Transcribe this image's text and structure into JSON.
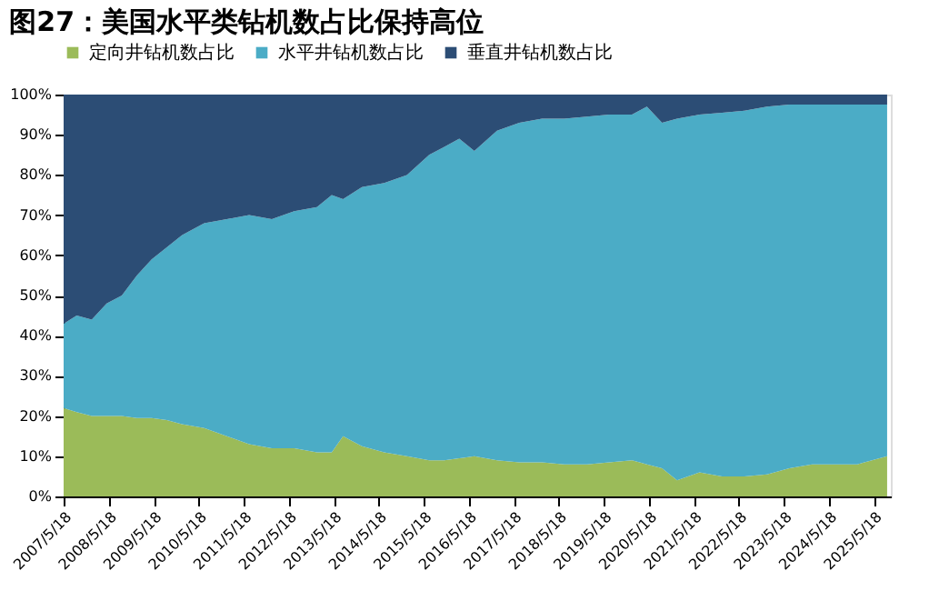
{
  "chart_data": {
    "type": "area",
    "title": "图27：美国水平类钻机数占比保持高位",
    "stacked": true,
    "legend": "top",
    "grid": false,
    "x": [
      "2007-05-18",
      "2007-09-01",
      "2008-01-01",
      "2008-05-01",
      "2008-09-01",
      "2009-01-01",
      "2009-05-01",
      "2009-09-01",
      "2010-01-01",
      "2010-07-01",
      "2011-01-01",
      "2011-07-01",
      "2012-01-01",
      "2012-07-01",
      "2013-01-01",
      "2013-05-01",
      "2013-08-01",
      "2014-01-01",
      "2014-07-01",
      "2015-01-01",
      "2015-07-01",
      "2015-11-01",
      "2016-03-01",
      "2016-07-01",
      "2017-01-01",
      "2017-07-01",
      "2018-01-01",
      "2018-07-01",
      "2019-01-01",
      "2019-07-01",
      "2020-01-01",
      "2020-05-01",
      "2020-09-01",
      "2021-01-01",
      "2021-07-01",
      "2022-01-01",
      "2022-07-01",
      "2023-01-01",
      "2023-07-01",
      "2024-01-01",
      "2024-07-01",
      "2025-01-01",
      "2025-09-01"
    ],
    "series": [
      {
        "name": "定向井钻机数占比",
        "color": "#9bbb59",
        "values": [
          22,
          21,
          20,
          20,
          20,
          19.5,
          19.5,
          19,
          18,
          17,
          15,
          13,
          12,
          12,
          11,
          11,
          15,
          12.5,
          11,
          10,
          9,
          9,
          9.5,
          10,
          9,
          8.5,
          8.5,
          8,
          8,
          8.5,
          9,
          8,
          7,
          4,
          6,
          5,
          5,
          5.5,
          7,
          8,
          8,
          8,
          10
        ]
      },
      {
        "name": "水平井钻机数占比",
        "color": "#4bacc6",
        "values": [
          21,
          24,
          24,
          28,
          30,
          35.5,
          39.5,
          43,
          47,
          51,
          54,
          57,
          57,
          59,
          61,
          64,
          59,
          64.5,
          67,
          70,
          76,
          78,
          79.5,
          76,
          82,
          84.5,
          85.5,
          86,
          86.5,
          86.5,
          86,
          89,
          86,
          90,
          89,
          90.5,
          91,
          91.5,
          90.5,
          89.5,
          89.5,
          89.5,
          87.5
        ]
      },
      {
        "name": "垂直井钻机数占比",
        "color": "#2c4d75",
        "values": [
          57,
          55,
          56,
          52,
          50,
          45,
          41,
          38,
          35,
          32,
          31,
          30,
          31,
          29,
          28,
          25,
          26,
          23,
          22,
          20,
          15,
          13,
          11,
          14,
          9,
          7,
          6,
          6,
          5.5,
          5,
          5,
          3,
          7,
          6,
          5,
          4.5,
          4,
          3,
          2.5,
          2.5,
          2.5,
          2.5,
          2.5
        ]
      }
    ],
    "xlim": [
      "2007-05-18",
      "2025-10-01"
    ],
    "xticks": [
      {
        "value": "2007-05-18",
        "label": "2007/5/18"
      },
      {
        "value": "2008-05-18",
        "label": "2008/5/18"
      },
      {
        "value": "2009-05-18",
        "label": "2009/5/18"
      },
      {
        "value": "2010-05-18",
        "label": "2010/5/18"
      },
      {
        "value": "2011-05-18",
        "label": "2011/5/18"
      },
      {
        "value": "2012-05-18",
        "label": "2012/5/18"
      },
      {
        "value": "2013-05-18",
        "label": "2013/5/18"
      },
      {
        "value": "2014-05-18",
        "label": "2014/5/18"
      },
      {
        "value": "2015-05-18",
        "label": "2015/5/18"
      },
      {
        "value": "2016-05-18",
        "label": "2016/5/18"
      },
      {
        "value": "2017-05-18",
        "label": "2017/5/18"
      },
      {
        "value": "2018-05-18",
        "label": "2018/5/18"
      },
      {
        "value": "2019-05-18",
        "label": "2019/5/18"
      },
      {
        "value": "2020-05-18",
        "label": "2020/5/18"
      },
      {
        "value": "2021-05-18",
        "label": "2021/5/18"
      },
      {
        "value": "2022-05-18",
        "label": "2022/5/18"
      },
      {
        "value": "2023-05-18",
        "label": "2023/5/18"
      },
      {
        "value": "2024-05-18",
        "label": "2024/5/18"
      },
      {
        "value": "2025-05-18",
        "label": "2025/5/18"
      }
    ],
    "ylim": [
      0,
      100
    ],
    "yticks": [
      {
        "value": 0,
        "label": "0%"
      },
      {
        "value": 10,
        "label": "10%"
      },
      {
        "value": 20,
        "label": "20%"
      },
      {
        "value": 30,
        "label": "30%"
      },
      {
        "value": 40,
        "label": "40%"
      },
      {
        "value": 50,
        "label": "50%"
      },
      {
        "value": 60,
        "label": "60%"
      },
      {
        "value": 70,
        "label": "70%"
      },
      {
        "value": 80,
        "label": "80%"
      },
      {
        "value": 90,
        "label": "90%"
      },
      {
        "value": 100,
        "label": "100%"
      }
    ]
  }
}
